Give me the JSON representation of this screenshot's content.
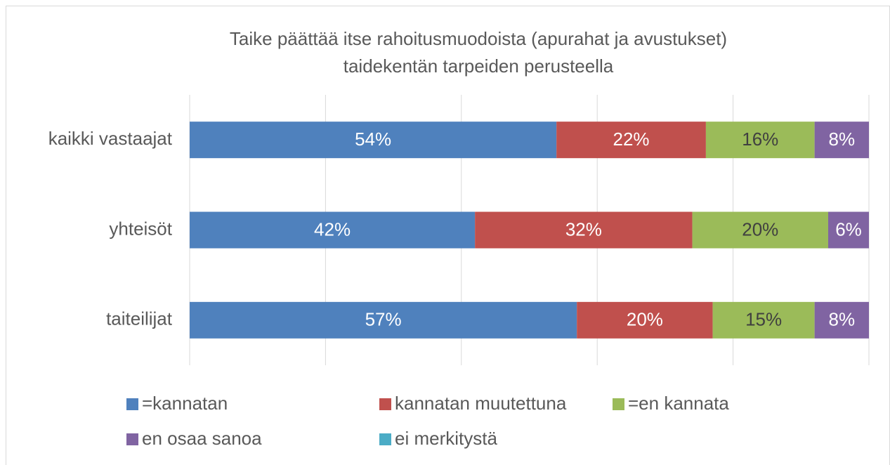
{
  "chart_data": {
    "type": "stacked_barh",
    "title": [
      "Taike päättää itse rahoitusmuodoista (apurahat ja avustukset)",
      "taidekentän tarpeiden perusteella"
    ],
    "categories": [
      "kaikki vastaajat",
      "yhteisöt",
      "taiteilijat"
    ],
    "series": [
      {
        "name": "=kannatan",
        "color": "#4f81bd",
        "values": [
          54,
          42,
          57
        ],
        "value_labels": [
          "54%",
          "42%",
          "57%"
        ]
      },
      {
        "name": "kannatan muutettuna",
        "color": "#c0504d",
        "values": [
          22,
          32,
          20
        ],
        "value_labels": [
          "22%",
          "32%",
          "20%"
        ]
      },
      {
        "name": "=en kannata",
        "color": "#9bbb59",
        "values": [
          16,
          20,
          15
        ],
        "value_labels": [
          "16%",
          "20%",
          "15%"
        ]
      },
      {
        "name": "en osaa sanoa",
        "color": "#8064a2",
        "values": [
          8,
          6,
          8
        ],
        "value_labels": [
          "8%",
          "6%",
          "8%"
        ]
      },
      {
        "name": "ei merkitystä",
        "color": "#4bacc6",
        "values": [
          0,
          0,
          0
        ]
      }
    ],
    "xlim": [
      0,
      100
    ],
    "xticks": [
      0,
      20,
      40,
      60,
      80,
      100
    ],
    "grid": true,
    "legend": "bottom"
  }
}
